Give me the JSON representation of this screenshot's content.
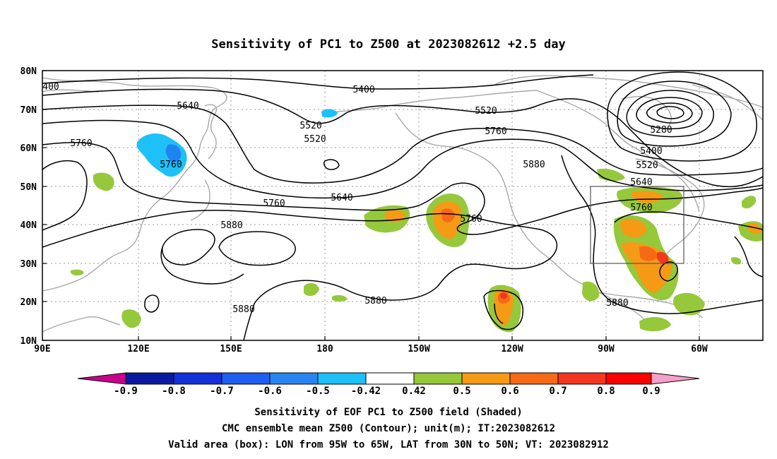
{
  "title": "Sensitivity of PC1 to Z500 at 2023082612 +2.5 day",
  "map": {
    "lat_ticks": [
      "80N",
      "70N",
      "60N",
      "50N",
      "40N",
      "30N",
      "20N",
      "10N"
    ],
    "lon_ticks": [
      "90E",
      "120E",
      "150E",
      "180",
      "150W",
      "120W",
      "90W",
      "60W"
    ],
    "contour_labels": [
      {
        "id": "c5400a",
        "text": "5400"
      },
      {
        "id": "c5400b",
        "text": "400"
      },
      {
        "id": "c5640a",
        "text": "5640"
      },
      {
        "id": "c5520a",
        "text": "5520"
      },
      {
        "id": "c5520b",
        "text": "5520"
      },
      {
        "id": "c5520c",
        "text": "5520"
      },
      {
        "id": "c5760a",
        "text": "5760"
      },
      {
        "id": "c5760b",
        "text": "5760"
      },
      {
        "id": "c5760c",
        "text": "5760"
      },
      {
        "id": "c5640b",
        "text": "5640"
      },
      {
        "id": "c5880a",
        "text": "5880"
      },
      {
        "id": "c5760d",
        "text": "5760"
      },
      {
        "id": "c5880b",
        "text": "5880"
      },
      {
        "id": "c5880c",
        "text": "5880"
      },
      {
        "id": "c5880d",
        "text": "5880"
      },
      {
        "id": "c5280",
        "text": "5280"
      },
      {
        "id": "c5400c",
        "text": "5400"
      },
      {
        "id": "c5520d",
        "text": "5520"
      },
      {
        "id": "c5640c",
        "text": "5640"
      },
      {
        "id": "c5760e",
        "text": "5760"
      },
      {
        "id": "c5880e",
        "text": "5880"
      },
      {
        "id": "c5760f",
        "text": "5760"
      }
    ],
    "valid_box": {
      "lon_from": "95W",
      "lon_to": "65W",
      "lat_from": "30N",
      "lat_to": "50N"
    }
  },
  "colorbar": {
    "labels": [
      "-0.9",
      "-0.8",
      "-0.7",
      "-0.6",
      "-0.5",
      "-0.42",
      "0.42",
      "0.5",
      "0.6",
      "0.7",
      "0.8",
      "0.9"
    ],
    "colors": [
      "#c8008c",
      "#0a1aa0",
      "#1430d8",
      "#1e5ef0",
      "#2884f0",
      "#1ec0f8",
      "#ffffff",
      "#96c83c",
      "#f59a14",
      "#f56a14",
      "#f5361e",
      "#ff0000",
      "#f5a0c8"
    ]
  },
  "shading_colors": {
    "cyan": "#1ec0f8",
    "green": "#96c83c",
    "orange": "#f59a14",
    "darkorange": "#f56a14",
    "red": "#f5361e"
  },
  "caption": {
    "line1": "Sensitivity of EOF PC1 to Z500 field (Shaded)",
    "line2": "CMC ensemble mean Z500 (Contour); unit(m); IT:2023082612",
    "line3": "Valid area (box): LON from 95W to 65W, LAT from 30N to 50N; VT: 2023082912"
  }
}
